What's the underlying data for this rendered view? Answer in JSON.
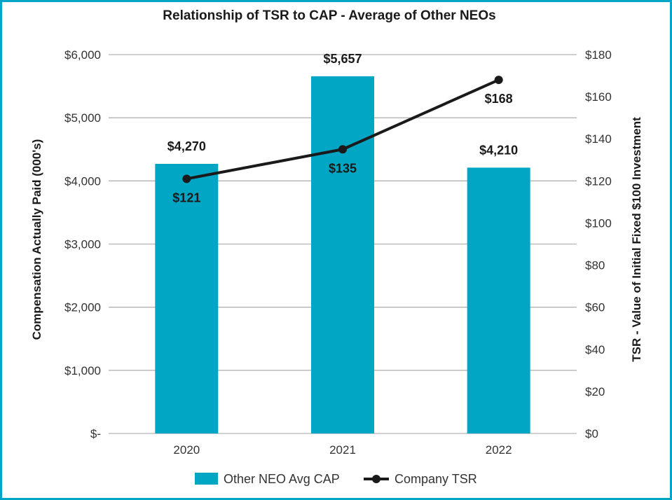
{
  "colors": {
    "bar": "#00a6c4",
    "line": "#1a1a1a",
    "grid": "#b3b3b3",
    "frame": "#00a6c4"
  },
  "chart_data": {
    "type": "bar+line",
    "title": "Relationship of TSR to CAP - Average of Other NEOs",
    "categories": [
      "2020",
      "2021",
      "2022"
    ],
    "series": [
      {
        "name": "Other NEO Avg CAP",
        "kind": "bar",
        "axis": "left",
        "values": [
          4270,
          5657,
          4210
        ],
        "labels": [
          "$4,270",
          "$5,657",
          "$4,210"
        ]
      },
      {
        "name": "Company TSR",
        "kind": "line",
        "axis": "right",
        "values": [
          121,
          135,
          168
        ],
        "labels": [
          "$121",
          "$135",
          "$168"
        ]
      }
    ],
    "y_left": {
      "label": "Compensation Actually Paid (000's)",
      "min": 0,
      "max": 6000,
      "step": 1000,
      "tick_labels": [
        "$-",
        "$1,000",
        "$2,000",
        "$3,000",
        "$4,000",
        "$5,000",
        "$6,000"
      ]
    },
    "y_right": {
      "label": "TSR - Value of Initial Fixed $100 Investment",
      "min": 0,
      "max": 180,
      "step": 20,
      "tick_labels": [
        "$0",
        "$20",
        "$40",
        "$60",
        "$80",
        "$100",
        "$120",
        "$140",
        "$160",
        "$180"
      ]
    },
    "grid": true,
    "legend": "bottom-center"
  }
}
